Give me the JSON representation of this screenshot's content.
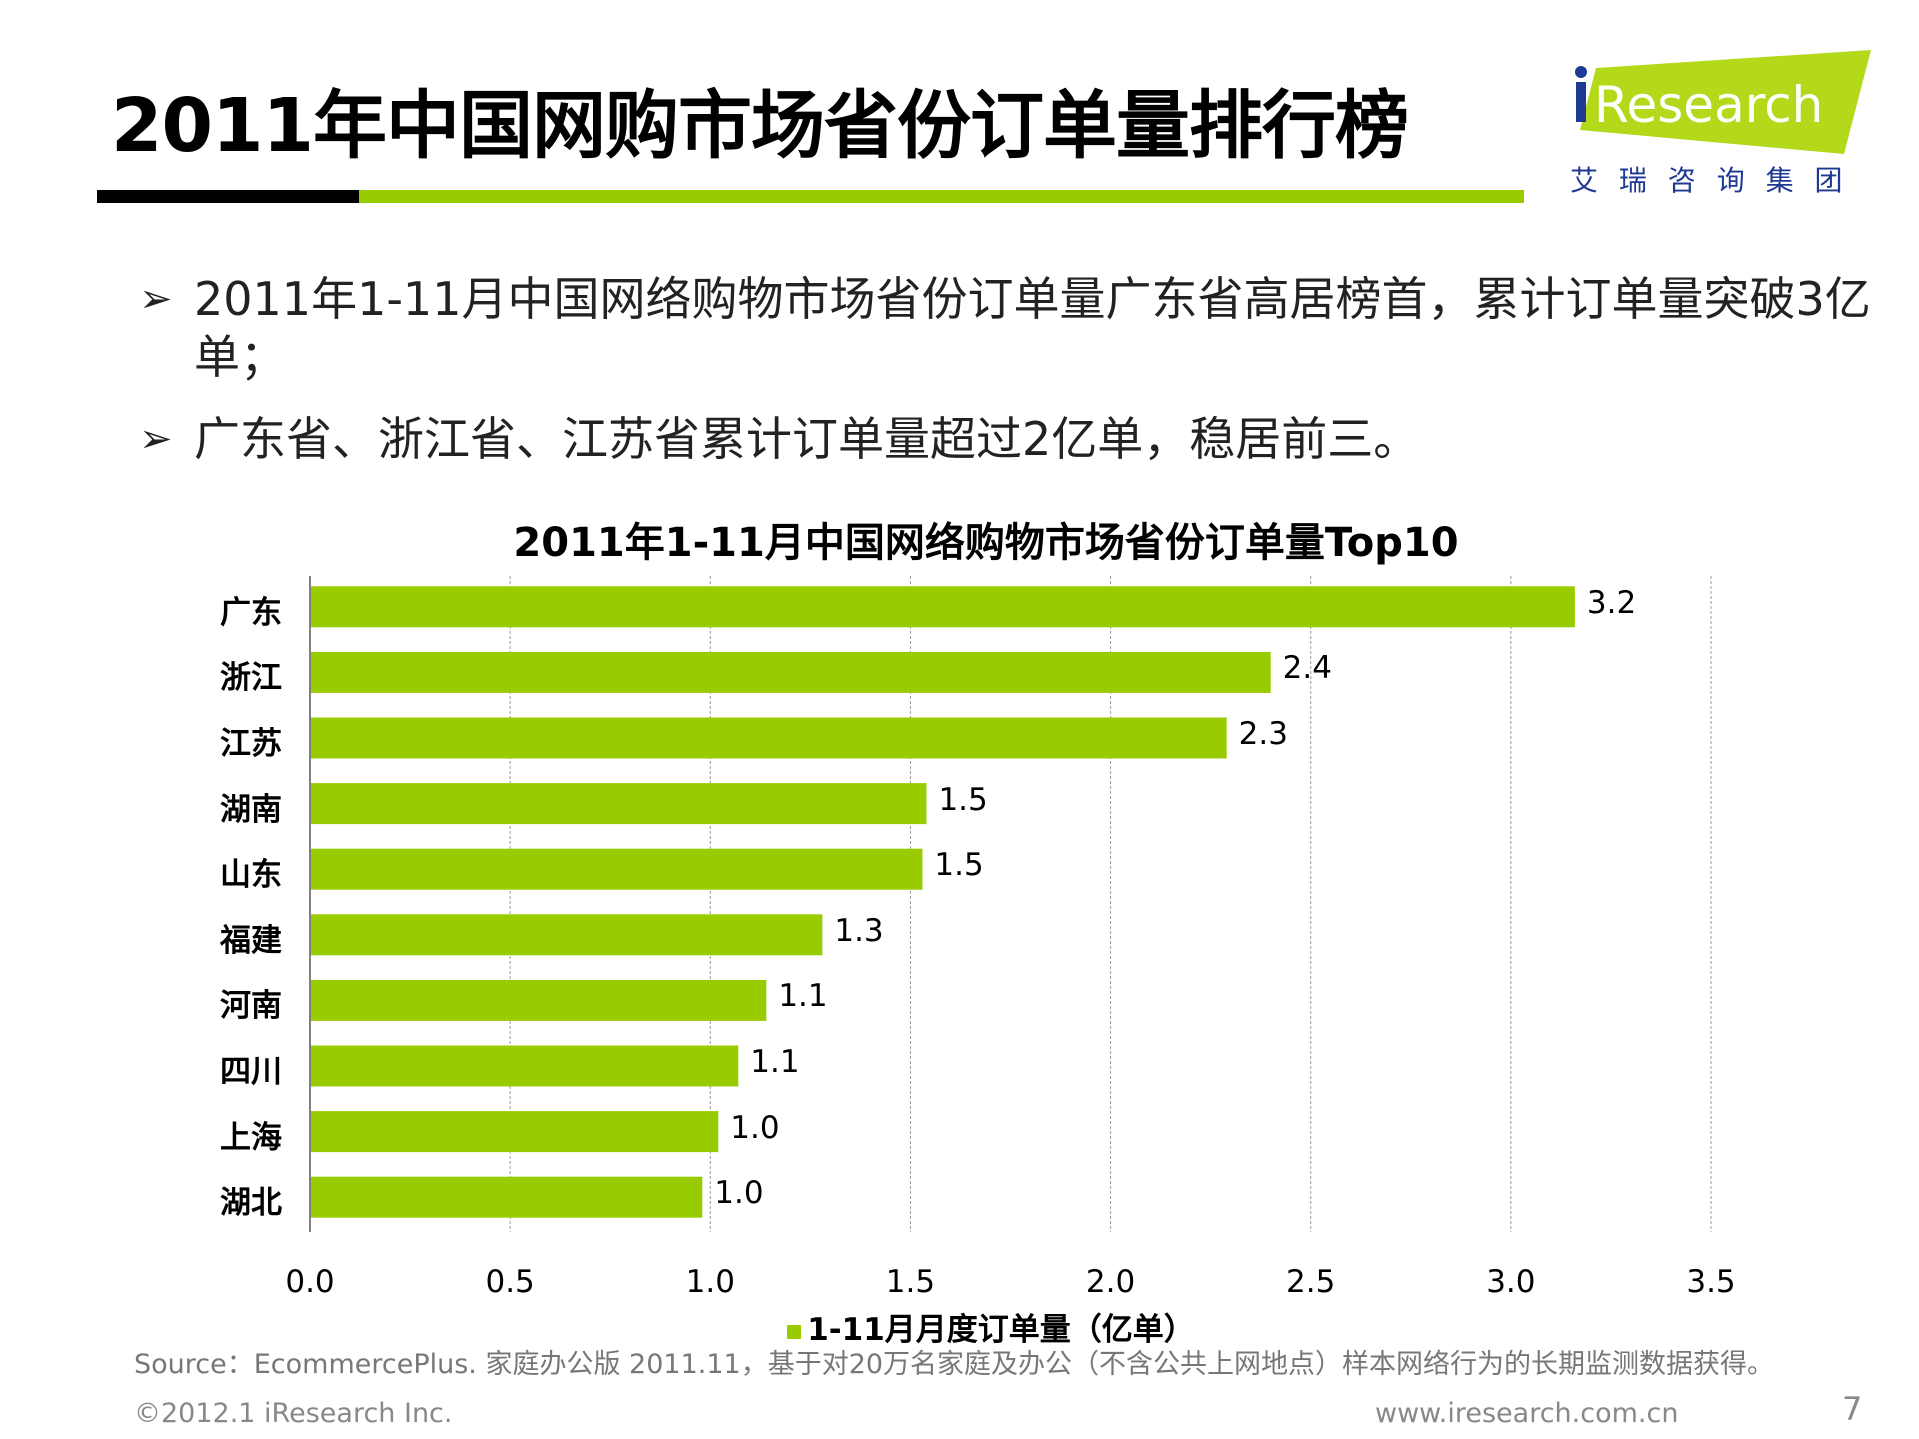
{
  "title": "2011年中国网购市场省份订单量排行榜",
  "logo": {
    "text": "iResearch",
    "subtitle": "艾 瑞 咨 询 集 团",
    "colors": {
      "green": "#b3d91a",
      "blue": "#1f3a93"
    }
  },
  "bullets": [
    "2011年1-11月中国网络购物市场省份订单量广东省高居榜首，累计订单量突破3亿单；",
    "广东省、浙江省、江苏省累计订单量超过2亿单，稳居前三。"
  ],
  "bullet_icon": "arrow-bullet-icon",
  "chart_data": {
    "type": "bar",
    "orientation": "horizontal",
    "title": "2011年1-11月中国网络购物市场省份订单量Top10",
    "categories": [
      "广东",
      "浙江",
      "江苏",
      "湖南",
      "山东",
      "福建",
      "河南",
      "四川",
      "上海",
      "湖北"
    ],
    "values": [
      3.16,
      2.4,
      2.29,
      1.54,
      1.53,
      1.28,
      1.14,
      1.07,
      1.02,
      0.98
    ],
    "data_labels": [
      "3.2",
      "2.4",
      "2.3",
      "1.5",
      "1.5",
      "1.3",
      "1.1",
      "1.1",
      "1.0",
      "1.0"
    ],
    "series": [
      {
        "name": "1-11月月度订单量（亿单）",
        "color": "#99cc00"
      }
    ],
    "xlim": [
      0,
      3.5
    ],
    "x_ticks": [
      "0.0",
      "0.5",
      "1.0",
      "1.5",
      "2.0",
      "2.5",
      "3.0",
      "3.5"
    ],
    "grid": "vertical dashed",
    "legend": "bottom"
  },
  "source": "Source：EcommercePlus. 家庭办公版 2011.11，基于对20万名家庭及办公（不含公共上网地点）样本网络行为的长期监测数据获得。",
  "footer": {
    "copyright": "©2012.1 iResearch Inc.",
    "website": "www.iresearch.com.cn",
    "page": "7"
  }
}
